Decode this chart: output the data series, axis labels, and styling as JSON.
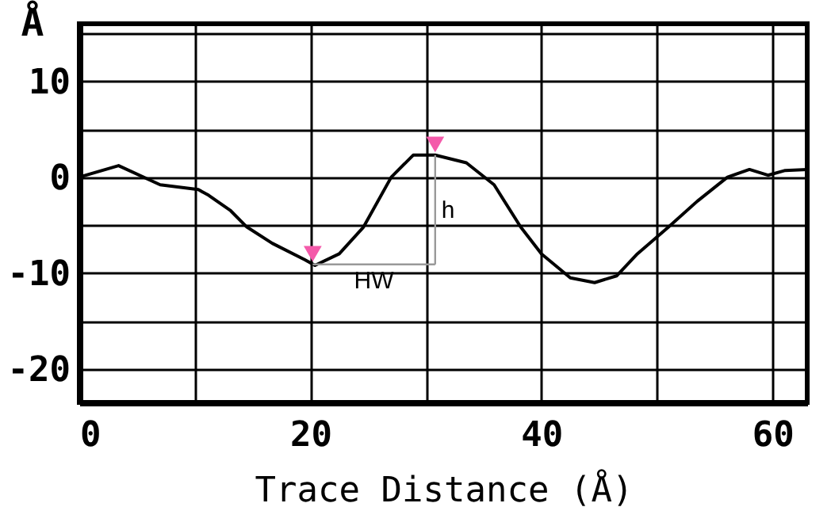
{
  "chart_data": {
    "type": "line",
    "xlabel": "Trace Distance (Å)",
    "ylabel": "Å",
    "xlim": [
      0,
      63
    ],
    "ylim": [
      -23.5,
      16
    ],
    "xticks": [
      0,
      {
        "value": 10,
        "label": null
      },
      20,
      {
        "value": 30,
        "label": null
      },
      40,
      {
        "value": 50,
        "label": null
      },
      60
    ],
    "yticks": [
      -20,
      {
        "value": -15,
        "label": null
      },
      -10,
      {
        "value": -5,
        "label": null
      },
      0,
      {
        "value": 5,
        "label": null
      },
      10,
      {
        "value": 15,
        "label": null
      }
    ],
    "grid": true,
    "series": [
      {
        "color": "#000000",
        "x": [
          0,
          3.4,
          7,
          10.3,
          11.2,
          13.1,
          14.5,
          16.7,
          19.5,
          20.4,
          22.5,
          24.6,
          27,
          28.9,
          30.8,
          33.5,
          35.9,
          38.2,
          40,
          42.5,
          44.6,
          46.5,
          48.3,
          51,
          53.5,
          56.1,
          58,
          59.6,
          61.1,
          63
        ],
        "values": [
          0,
          1.2,
          -0.8,
          -1.3,
          -1.9,
          -3.5,
          -5.2,
          -6.9,
          -8.6,
          -9.2,
          -8,
          -5.2,
          0,
          2.3,
          2.3,
          1.5,
          -0.8,
          -5.2,
          -8,
          -10.5,
          -11,
          -10.3,
          -8,
          -5.2,
          -2.5,
          0,
          0.8,
          0.2,
          0.7,
          0.8
        ]
      },
      {
        "type": "scatter",
        "marker": "triangle",
        "color": "#f45aaa",
        "x": [
          20.2,
          30.8
        ],
        "values": [
          -8,
          3.4
        ]
      }
    ],
    "annotations": [
      "h",
      "HW"
    ]
  }
}
